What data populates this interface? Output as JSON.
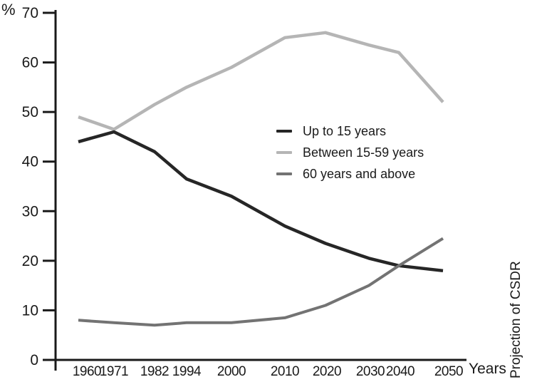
{
  "chart_data": {
    "type": "line",
    "x": [
      "1960",
      "1971",
      "1982",
      "1994",
      "2000",
      "2010",
      "2020",
      "2030",
      "2040",
      "2050"
    ],
    "series": [
      {
        "name": "Up to 15 years",
        "color": "#262626",
        "values": [
          44,
          46,
          42,
          36.5,
          33,
          27,
          23.5,
          20.5,
          19,
          18
        ]
      },
      {
        "name": "Between 15-59 years",
        "color": "#b5b5b5",
        "values": [
          49,
          46.5,
          51.5,
          55,
          59,
          65,
          66,
          63.5,
          62,
          52
        ]
      },
      {
        "name": "60 years and above",
        "color": "#737373",
        "values": [
          8,
          7.5,
          7,
          7.5,
          7.5,
          8.5,
          11,
          15,
          19,
          24.5
        ]
      }
    ],
    "title": "",
    "ylabel": "%",
    "xlabel": "Years",
    "annotation": "Projection of CSDR",
    "ylim": [
      0,
      70
    ],
    "yticks": [
      0,
      10,
      20,
      30,
      40,
      50,
      60,
      70
    ],
    "grid": false,
    "legend_position": "center-right",
    "axis_color": "#1a1a1a"
  }
}
